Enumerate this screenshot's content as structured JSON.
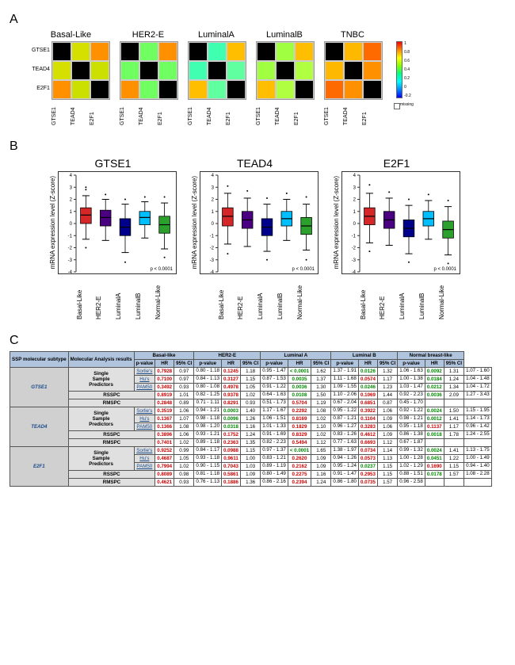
{
  "panelA": {
    "label": "A",
    "row_genes": [
      "GTSE1",
      "TEAD4",
      "E2F1"
    ],
    "col_genes": [
      "GTSE1",
      "TEAD4",
      "E2F1"
    ],
    "subtypes": [
      {
        "title": "Basal-Like",
        "cells": [
          "#000000",
          "#d5e000",
          "#ff9000",
          "#d5e000",
          "#000000",
          "#cce000",
          "#ff9000",
          "#cce000",
          "#000000"
        ]
      },
      {
        "title": "HER2-E",
        "cells": [
          "#000000",
          "#70ff60",
          "#ff9000",
          "#70ff60",
          "#000000",
          "#70ff60",
          "#ff9000",
          "#70ff60",
          "#000000"
        ]
      },
      {
        "title": "LuminalA",
        "cells": [
          "#000000",
          "#40ffb0",
          "#ffbe00",
          "#40ffb0",
          "#000000",
          "#60ffa0",
          "#ffbe00",
          "#60ffa0",
          "#000000"
        ]
      },
      {
        "title": "LuminalB",
        "cells": [
          "#000000",
          "#a0ff40",
          "#ffbe00",
          "#a0ff40",
          "#000000",
          "#b0ff40",
          "#ffbe00",
          "#b0ff40",
          "#000000"
        ]
      },
      {
        "title": "TNBC",
        "cells": [
          "#000000",
          "#ffb800",
          "#ff6a00",
          "#ffb800",
          "#000000",
          "#ff9000",
          "#ff6a00",
          "#ff9000",
          "#000000"
        ]
      }
    ],
    "colorbar": {
      "ticks": [
        "1",
        "0.8",
        "0.6",
        "0.4",
        "0.2",
        "0",
        "-0.2"
      ],
      "missing_label": "missing"
    }
  },
  "panelB": {
    "label": "B",
    "ylabel": "mRNA expression level (Z-score)",
    "pval": "p < 0.0001",
    "ylim": [
      -4,
      4
    ],
    "yticks": [
      -4,
      -3,
      -2,
      -1,
      0,
      1,
      2,
      3,
      4
    ],
    "categories": [
      "Basal-Like",
      "HER2-E",
      "LuminalA",
      "LuminalB",
      "Normal-Like"
    ],
    "colors": {
      "Basal-Like": "#d62728",
      "HER2-E": "#4b0082",
      "LuminalA": "#00008b",
      "LuminalB": "#00bfff",
      "Normal-Like": "#2ca02c"
    },
    "plots": [
      {
        "title": "GTSE1",
        "boxes": [
          {
            "q1": 0.0,
            "med": 0.7,
            "q3": 1.3,
            "lo": -1.3,
            "hi": 2.3,
            "out": [
              2.8,
              3.0,
              -2.0
            ]
          },
          {
            "q1": -0.2,
            "med": 0.5,
            "q3": 1.1,
            "lo": -1.4,
            "hi": 2.0,
            "out": [
              2.4
            ]
          },
          {
            "q1": -1.0,
            "med": -0.3,
            "q3": 0.4,
            "lo": -2.4,
            "hi": 1.6,
            "out": [
              2.0,
              -3.2
            ]
          },
          {
            "q1": -0.1,
            "med": 0.5,
            "q3": 1.0,
            "lo": -1.2,
            "hi": 1.8,
            "out": [
              2.2
            ]
          },
          {
            "q1": -0.8,
            "med": -0.1,
            "q3": 0.6,
            "lo": -2.1,
            "hi": 1.7,
            "out": [
              2.2,
              -2.8
            ]
          }
        ]
      },
      {
        "title": "TEAD4",
        "boxes": [
          {
            "q1": -0.2,
            "med": 0.6,
            "q3": 1.3,
            "lo": -1.7,
            "hi": 2.5,
            "out": [
              3.1,
              -2.5
            ]
          },
          {
            "q1": -0.4,
            "med": 0.3,
            "q3": 1.0,
            "lo": -1.9,
            "hi": 2.1,
            "out": [
              2.7
            ]
          },
          {
            "q1": -1.0,
            "med": -0.3,
            "q3": 0.4,
            "lo": -2.3,
            "hi": 1.6,
            "out": [
              2.1,
              -3.0
            ]
          },
          {
            "q1": -0.2,
            "med": 0.4,
            "q3": 1.0,
            "lo": -1.4,
            "hi": 2.0,
            "out": [
              2.5
            ]
          },
          {
            "q1": -0.9,
            "med": -0.2,
            "q3": 0.5,
            "lo": -2.2,
            "hi": 1.6,
            "out": [
              2.2,
              -3.0
            ]
          }
        ]
      },
      {
        "title": "E2F1",
        "boxes": [
          {
            "q1": -0.1,
            "med": 0.6,
            "q3": 1.3,
            "lo": -1.6,
            "hi": 2.5,
            "out": [
              3.2,
              -2.3
            ]
          },
          {
            "q1": -0.4,
            "med": 0.3,
            "q3": 1.0,
            "lo": -1.8,
            "hi": 2.1,
            "out": [
              2.6
            ]
          },
          {
            "q1": -1.1,
            "med": -0.4,
            "q3": 0.3,
            "lo": -2.5,
            "hi": 1.5,
            "out": [
              2.0,
              -3.2
            ]
          },
          {
            "q1": -0.2,
            "med": 0.4,
            "q3": 1.0,
            "lo": -1.3,
            "hi": 1.9,
            "out": [
              2.4
            ]
          },
          {
            "q1": -1.2,
            "med": -0.5,
            "q3": 0.2,
            "lo": -2.6,
            "hi": 1.4,
            "out": [
              1.9,
              -3.3
            ]
          }
        ]
      }
    ]
  },
  "panelC": {
    "label": "C",
    "header_subtype_groups": [
      "Basal-like",
      "HER2-E",
      "Luminal A",
      "Luminal B",
      "Normal breast-like"
    ],
    "header_sub": [
      "p-value",
      "HR",
      "95% CI"
    ],
    "corner": "SSP molecular subtype",
    "corner2": "Molecular Analysis results",
    "predictors": [
      "Sorlie's",
      "Hu's",
      "PAM50",
      "RSSPC",
      "RMSPC"
    ],
    "ssp_label": "Single Sample Predictors",
    "genes": [
      "GTSE1",
      "TEAD4",
      "E2F1"
    ],
    "rows": {
      "GTSE1": [
        {
          "an": "Sorlie's",
          "c": [
            [
              "0.7928",
              "r"
            ],
            "0.97",
            "0.80 - 1.18",
            [
              "0.1245",
              "r"
            ],
            "1.18",
            "0.95 - 1.47",
            [
              "< 0.0001",
              "g"
            ],
            "1.62",
            "1.37 - 1.91",
            [
              "0.0126",
              "g"
            ],
            "1.32",
            "1.06 - 1.63",
            [
              "0.0092",
              "g"
            ],
            "1.31",
            "1.07 - 1.60"
          ]
        },
        {
          "an": "Hu's",
          "c": [
            [
              "0.7100",
              "r"
            ],
            "0.97",
            "0.84 - 1.13",
            [
              "0.3127",
              "r"
            ],
            "1.15",
            "0.87 - 1.53",
            [
              "0.0035",
              "g"
            ],
            "1.37",
            "1.11 - 1.68",
            [
              "0.0574",
              "r"
            ],
            "1.17",
            "1.00 - 1.38",
            [
              "0.0184",
              "g"
            ],
            "1.24",
            "1.04 - 1.48"
          ]
        },
        {
          "an": "PAM50",
          "c": [
            [
              "0.3492",
              "r"
            ],
            "0.93",
            "0.80 - 1.08",
            [
              "0.4978",
              "r"
            ],
            "1.05",
            "0.91 - 1.22",
            [
              "0.0036",
              "g"
            ],
            "1.30",
            "1.09 - 1.55",
            [
              "0.0246",
              "g"
            ],
            "1.23",
            "1.03 - 1.47",
            [
              "0.0212",
              "g"
            ],
            "1.34",
            "1.04 - 1.72"
          ]
        },
        {
          "an": "RSSPC",
          "c": [
            [
              "0.8919",
              "r"
            ],
            "1.01",
            "0.82 - 1.25",
            [
              "0.9378",
              "r"
            ],
            "1.02",
            "0.64 - 1.63",
            [
              "0.0108",
              "g"
            ],
            "1.50",
            "1.10 - 2.06",
            [
              "0.1069",
              "r"
            ],
            "1.44",
            "0.92 - 2.23",
            [
              "0.0036",
              "g"
            ],
            "2.09",
            "1.27 - 3.43"
          ]
        },
        {
          "an": "RMSPC",
          "c": [
            [
              "0.2848",
              "r"
            ],
            "0.89",
            "0.71 - 1.11",
            [
              "0.8291",
              "r"
            ],
            "0.93",
            "0.51 - 1.73",
            [
              "0.5704",
              "r"
            ],
            "1.19",
            "0.67 - 2.04",
            [
              "0.6851",
              "r"
            ],
            "0.87",
            "0.45 - 1.70",
            "",
            "",
            ""
          ]
        }
      ],
      "TEAD4": [
        {
          "an": "Sorlie's",
          "c": [
            [
              "0.3519",
              "r"
            ],
            "1.06",
            "0.94 - 1.21",
            [
              "0.0003",
              "g"
            ],
            "1.40",
            "1.17 - 1.67",
            [
              "0.2292",
              "r"
            ],
            "1.08",
            "0.95 - 1.22",
            [
              "0.3922",
              "r"
            ],
            "1.06",
            "0.92 - 1.22",
            [
              "0.0024",
              "g"
            ],
            "1.50",
            "1.15 - 1.95"
          ]
        },
        {
          "an": "Hu's",
          "c": [
            [
              "0.1367",
              "r"
            ],
            "1.07",
            "0.98 - 1.18",
            [
              "0.0096",
              "g"
            ],
            "1.26",
            "1.06 - 1.51",
            [
              "0.8169",
              "r"
            ],
            "1.02",
            "0.87 - 1.21",
            [
              "0.1104",
              "r"
            ],
            "1.09",
            "0.98 - 1.21",
            [
              "0.0012",
              "g"
            ],
            "1.41",
            "1.14 - 1.73"
          ]
        },
        {
          "an": "PAM50",
          "c": [
            [
              "0.1366",
              "r"
            ],
            "1.08",
            "0.98 - 1.20",
            [
              "0.0318",
              "g"
            ],
            "1.16",
            "1.01 - 1.33",
            [
              "0.1829",
              "r"
            ],
            "1.10",
            "0.96 - 1.27",
            [
              "0.3283",
              "r"
            ],
            "1.06",
            "0.95 - 1.18",
            [
              "0.1137",
              "r"
            ],
            "1.17",
            "0.96 - 1.42"
          ]
        },
        {
          "an": "RSSPC",
          "c": [
            [
              "0.3896",
              "r"
            ],
            "1.06",
            "0.93 - 1.21",
            [
              "0.1752",
              "r"
            ],
            "1.24",
            "0.91 - 1.69",
            [
              "0.8329",
              "r"
            ],
            "1.02",
            "0.83 - 1.26",
            [
              "0.4612",
              "r"
            ],
            "1.09",
            "0.86 - 1.38",
            [
              "0.0018",
              "g"
            ],
            "1.78",
            "1.24 - 2.55"
          ]
        },
        {
          "an": "RMSPC",
          "c": [
            [
              "0.7401",
              "r"
            ],
            "1.02",
            "0.89 - 1.18",
            [
              "0.2363",
              "r"
            ],
            "1.35",
            "0.82 - 2.23",
            [
              "0.5494",
              "r"
            ],
            "1.12",
            "0.77 - 1.63",
            [
              "0.6693",
              "r"
            ],
            "1.12",
            "0.67 - 1.87",
            "",
            "",
            ""
          ]
        }
      ],
      "E2F1": [
        {
          "an": "Sorlie's",
          "c": [
            [
              "0.9252",
              "r"
            ],
            "0.99",
            "0.84 - 1.17",
            [
              "0.0988",
              "r"
            ],
            "1.15",
            "0.97 - 1.37",
            [
              "< 0.0001",
              "g"
            ],
            "1.65",
            "1.38 - 1.97",
            [
              "0.0734",
              "r"
            ],
            "1.14",
            "0.99 - 1.32",
            [
              "0.0024",
              "g"
            ],
            "1.41",
            "1.13 - 1.75"
          ]
        },
        {
          "an": "Hu's",
          "c": [
            [
              "0.4687",
              "r"
            ],
            "1.05",
            "0.93 - 1.18",
            [
              "0.9611",
              "r"
            ],
            "1.00",
            "0.83 - 1.21",
            [
              "0.2620",
              "r"
            ],
            "1.09",
            "0.94 - 1.26",
            [
              "0.0573",
              "r"
            ],
            "1.13",
            "1.00 - 1.28",
            [
              "0.0451",
              "g"
            ],
            "1.22",
            "1.00 - 1.49"
          ]
        },
        {
          "an": "PAM50",
          "c": [
            [
              "0.7994",
              "r"
            ],
            "1.02",
            "0.90 - 1.15",
            [
              "0.7043",
              "r"
            ],
            "1.03",
            "0.89 - 1.19",
            [
              "0.2162",
              "r"
            ],
            "1.09",
            "0.95 - 1.24",
            [
              "0.0237",
              "g"
            ],
            "1.15",
            "1.02 - 1.29",
            [
              "0.1690",
              "r"
            ],
            "1.15",
            "0.94 - 1.40"
          ]
        },
        {
          "an": "RSSPC",
          "c": [
            [
              "0.8089",
              "r"
            ],
            "0.98",
            "0.81 - 1.18",
            [
              "0.5861",
              "r"
            ],
            "1.09",
            "0.80 - 1.49",
            [
              "0.2275",
              "r"
            ],
            "1.16",
            "0.91 - 1.47",
            [
              "0.2953",
              "r"
            ],
            "1.15",
            "0.88 - 1.51",
            [
              "0.0178",
              "g"
            ],
            "1.57",
            "1.08 - 2.28"
          ]
        },
        {
          "an": "RMSPC",
          "c": [
            [
              "0.4621",
              "r"
            ],
            "0.93",
            "0.76 - 1.13",
            [
              "0.1886",
              "r"
            ],
            "1.36",
            "0.86 - 2.16",
            [
              "0.2394",
              "r"
            ],
            "1.24",
            "0.86 - 1.80",
            [
              "0.0735",
              "r"
            ],
            "1.57",
            "0.96 - 2.58",
            "",
            "",
            ""
          ]
        }
      ]
    }
  }
}
